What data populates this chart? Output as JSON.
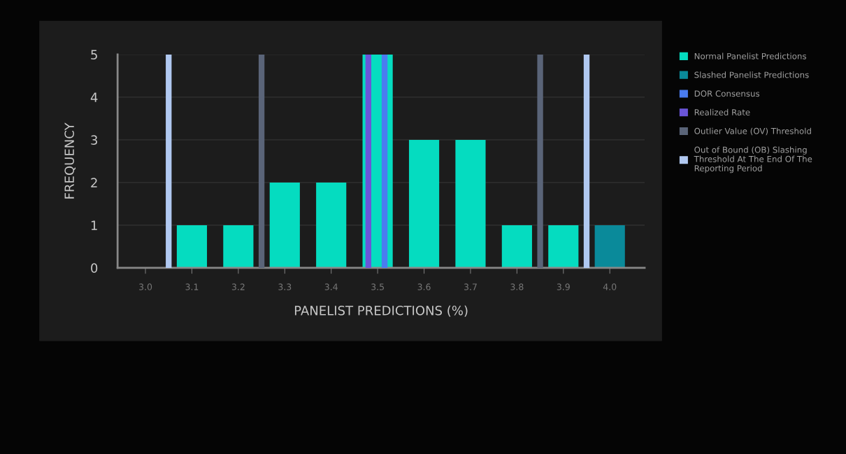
{
  "chart_data": {
    "type": "bar",
    "xlabel": "PANELIST PREDICTIONS (%)",
    "ylabel": "FREQUENCY",
    "xlim": [
      2.94,
      4.075
    ],
    "xticks": [
      {
        "value": 3.0,
        "label": "3.0"
      },
      3.1,
      3.2,
      3.3,
      3.4,
      3.5,
      3.6,
      3.7,
      3.8,
      3.9,
      {
        "value": 4.0,
        "label": "4.0"
      }
    ],
    "ylim": [
      0,
      5
    ],
    "yticks": [
      0,
      1,
      2,
      3,
      4,
      5
    ],
    "grid": "y",
    "legend": "right",
    "series": [
      {
        "name": "Normal Panelist Predictions",
        "color": "#05dcc0",
        "x": [
          3.1,
          3.2,
          3.3,
          3.4,
          3.5,
          3.6,
          3.7,
          3.8,
          3.9
        ],
        "values": [
          1,
          1,
          2,
          2,
          5,
          3,
          3,
          1,
          1
        ]
      },
      {
        "name": "Slashed Panelist Predictions",
        "color": "#0a8a9a",
        "x": [
          4.0
        ],
        "values": [
          1
        ]
      },
      {
        "type": "line",
        "name": "DOR Consensus",
        "color": "#4a7cf0",
        "x": [
          3.515,
          3.515
        ],
        "values": [
          0,
          5
        ]
      },
      {
        "type": "line",
        "name": "Realized Rate",
        "color": "#6a55d8",
        "x": [
          3.48,
          3.48
        ],
        "values": [
          0,
          5
        ]
      },
      {
        "type": "line",
        "name": "Outlier Value (OV) Threshold",
        "color": "#5a6478",
        "x": [
          3.25,
          3.25
        ],
        "values": [
          0,
          5
        ]
      },
      {
        "type": "line",
        "color": "#5a6478",
        "x": [
          3.85,
          3.85
        ],
        "values": [
          0,
          5
        ]
      },
      {
        "type": "line",
        "name": "Out of Bound (OB) Slashing Threshold At The End Of The Reporting Period",
        "color": "#b0c8f0",
        "x": [
          3.05,
          3.05
        ],
        "values": [
          0,
          5
        ]
      },
      {
        "type": "line",
        "color": "#b0c8f0",
        "x": [
          3.95,
          3.95
        ],
        "values": [
          0,
          5
        ]
      }
    ]
  }
}
